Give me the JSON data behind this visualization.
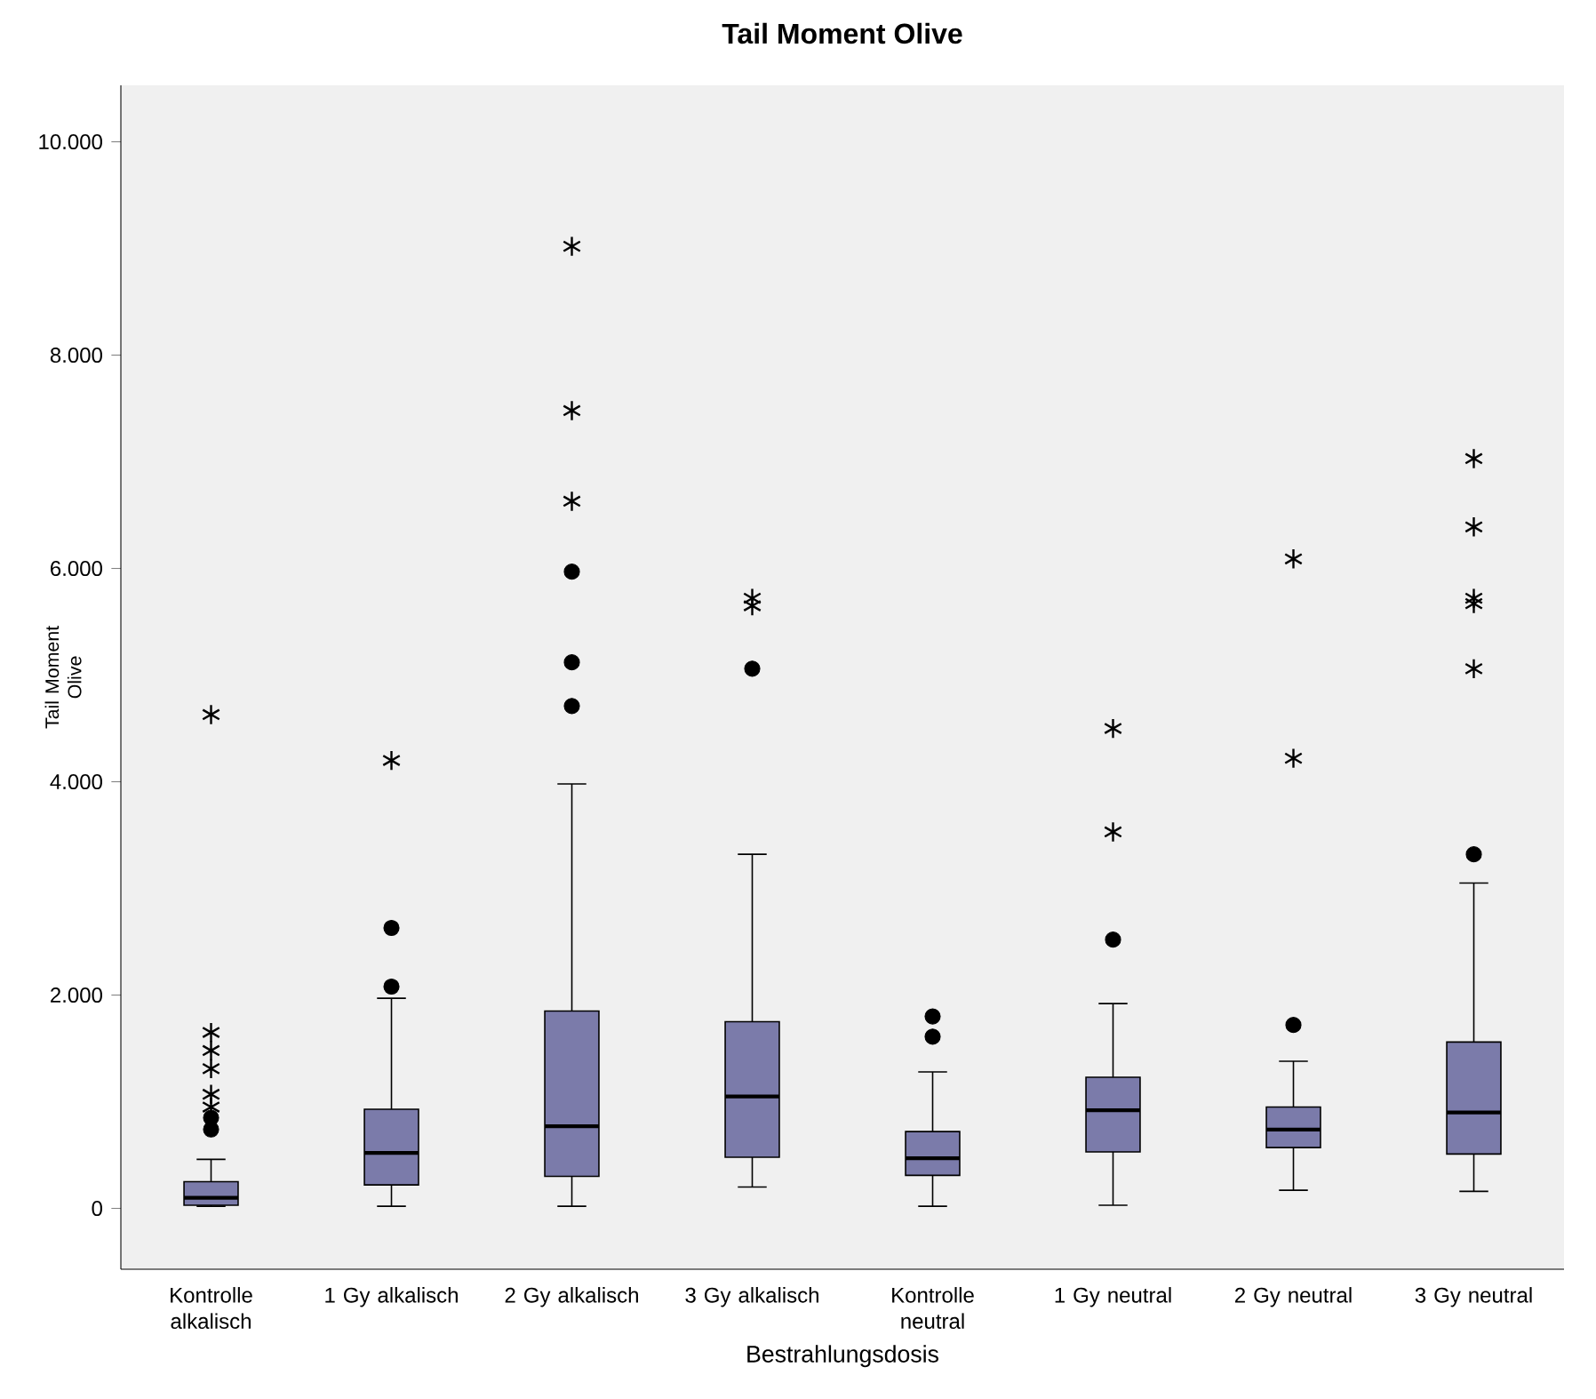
{
  "chart_data": {
    "type": "box",
    "title": "Tail Moment Olive",
    "xlabel": "Bestrahlungsdosis",
    "ylabel": "Tail Moment Olive",
    "categories": [
      "Kontrolle alkalisch",
      "1 Gy alkalisch",
      "2 Gy alkalisch",
      "3 Gy alkalisch",
      "Kontrolle neutral",
      "1 Gy neutral",
      "2 Gy neutral",
      "3 Gy neutral"
    ],
    "color": "#7b7baa",
    "boxes": [
      {
        "low": 20,
        "q1": 30,
        "median": 100,
        "q3": 250,
        "high": 460,
        "outliers": [
          850,
          740
        ]
      },
      {
        "low": 20,
        "q1": 220,
        "median": 520,
        "q3": 930,
        "high": 1970,
        "outliers": [
          2080,
          2630
        ]
      },
      {
        "low": 20,
        "q1": 300,
        "median": 770,
        "q3": 1850,
        "high": 3980,
        "outliers": [
          4710,
          5120,
          5970
        ]
      },
      {
        "low": 200,
        "q1": 480,
        "median": 1050,
        "q3": 1750,
        "high": 3320,
        "outliers": [
          5060
        ]
      },
      {
        "low": 20,
        "q1": 310,
        "median": 470,
        "q3": 720,
        "high": 1280,
        "outliers": [
          1610,
          1800
        ]
      },
      {
        "low": 30,
        "q1": 530,
        "median": 920,
        "q3": 1230,
        "high": 1920,
        "outliers": [
          2520
        ]
      },
      {
        "low": 170,
        "q1": 570,
        "median": 740,
        "q3": 950,
        "high": 1380,
        "outliers": [
          1720
        ]
      },
      {
        "low": 160,
        "q1": 510,
        "median": 900,
        "q3": 1560,
        "high": 3050,
        "outliers": [
          3320
        ]
      }
    ],
    "series": [
      {
        "type": "scatter",
        "marker": "cross",
        "color": "#000000",
        "x": [
          "Kontrolle alkalisch",
          "Kontrolle alkalisch",
          "Kontrolle alkalisch",
          "Kontrolle alkalisch",
          "Kontrolle alkalisch",
          "Kontrolle alkalisch",
          "1 Gy alkalisch",
          "2 Gy alkalisch",
          "2 Gy alkalisch",
          "2 Gy alkalisch",
          "3 Gy alkalisch",
          "3 Gy alkalisch",
          "1 Gy neutral",
          "1 Gy neutral",
          "2 Gy neutral",
          "2 Gy neutral",
          "3 Gy neutral",
          "3 Gy neutral",
          "3 Gy neutral",
          "3 Gy neutral",
          "3 Gy neutral"
        ],
        "values": [
          4630,
          1650,
          1480,
          1310,
          1070,
          950,
          4200,
          6630,
          7480,
          9020,
          5650,
          5720,
          3530,
          4500,
          4220,
          6090,
          5060,
          5670,
          5720,
          6390,
          7030
        ]
      }
    ],
    "ylim": [
      -570,
      10530
    ],
    "yticks": [
      0,
      {
        "value": 2000,
        "label": "2.000"
      },
      {
        "value": 4000,
        "label": "4.000"
      },
      {
        "value": 6000,
        "label": "6.000"
      },
      {
        "value": 8000,
        "label": "8.000"
      },
      {
        "value": 10000,
        "label": "10.000"
      }
    ]
  }
}
